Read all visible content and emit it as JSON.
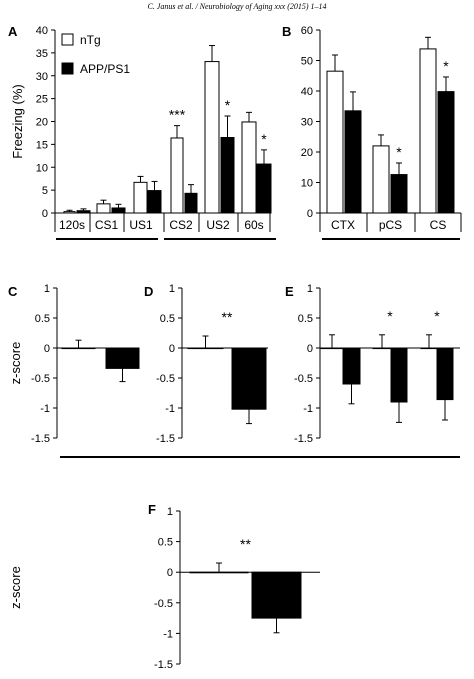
{
  "header": {
    "text": "C. Janus et al. / Neurobiology of Aging xxx (2015) 1–14"
  },
  "colors": {
    "nTg": "#ffffff",
    "APP/PS1": "#000000",
    "axis": "#000000"
  },
  "chart_data": [
    {
      "panel": "A",
      "type": "bar",
      "ylabel": "Freezing (%)",
      "ylim": [
        0,
        40
      ],
      "yticks": [
        "0",
        "5",
        "10",
        "15",
        "20",
        "25",
        "30",
        "35",
        "40"
      ],
      "categories": [
        "120s",
        "CS1",
        "US1",
        "CS2",
        "US2",
        "60s"
      ],
      "legend": [
        "nTg",
        "APP/PS1"
      ],
      "legend_position": "top-left",
      "series": [
        {
          "name": "nTg",
          "values": [
            0.3,
            2.0,
            6.7,
            16.4,
            33.1,
            19.9
          ],
          "errors": [
            0.3,
            0.8,
            1.3,
            2.7,
            3.5,
            2.1
          ]
        },
        {
          "name": "APP/PS1",
          "values": [
            0.5,
            1.1,
            4.9,
            4.3,
            16.5,
            10.7
          ],
          "errors": [
            0.4,
            0.8,
            2.0,
            1.9,
            4.7,
            3.1
          ]
        }
      ],
      "annotations": [
        "",
        "",
        "",
        "***",
        "*",
        "*"
      ]
    },
    {
      "panel": "B",
      "type": "bar",
      "ylabel": "",
      "ylim": [
        0,
        60
      ],
      "yticks": [
        "0",
        "10",
        "20",
        "30",
        "40",
        "50",
        "60"
      ],
      "categories": [
        "CTX",
        "pCS",
        "CS"
      ],
      "series": [
        {
          "name": "nTg",
          "values": [
            46.5,
            22.0,
            53.8
          ],
          "errors": [
            5.3,
            3.6,
            3.8
          ]
        },
        {
          "name": "APP/PS1",
          "values": [
            33.5,
            12.6,
            39.8
          ],
          "errors": [
            6.2,
            3.8,
            4.8
          ]
        }
      ],
      "annotations": [
        "",
        "*",
        "*"
      ]
    },
    {
      "panel": "C",
      "type": "bar",
      "ylabel": "z-score",
      "ylim": [
        -1.5,
        1
      ],
      "yticks": [
        "1",
        "0.5",
        "0",
        "-0.5",
        "-1",
        "-1.5"
      ],
      "series": [
        {
          "name": "nTg",
          "values": [
            0.0
          ],
          "errors": [
            0.13
          ]
        },
        {
          "name": "APP/PS1",
          "values": [
            -0.34
          ],
          "errors": [
            0.22
          ]
        }
      ],
      "annotations": [
        ""
      ]
    },
    {
      "panel": "D",
      "type": "bar",
      "ylabel": "",
      "ylim": [
        -1.5,
        1
      ],
      "yticks": [
        "1",
        "0.5",
        "0",
        "-0.5",
        "-1",
        "-1.5"
      ],
      "series": [
        {
          "name": "nTg",
          "values": [
            0.0
          ],
          "errors": [
            0.2
          ]
        },
        {
          "name": "APP/PS1",
          "values": [
            -1.02
          ],
          "errors": [
            0.24
          ]
        }
      ],
      "annotations": [
        "**"
      ]
    },
    {
      "panel": "E",
      "type": "bar",
      "ylabel": "",
      "ylim": [
        -1.5,
        1
      ],
      "yticks": [
        "1",
        "0.5",
        "0",
        "-0.5",
        "-1",
        "-1.5"
      ],
      "series": [
        {
          "name": "nTg",
          "values": [
            0.0,
            0.0,
            0.0
          ],
          "errors": [
            0.22,
            0.22,
            0.22
          ]
        },
        {
          "name": "APP/PS1",
          "values": [
            -0.6,
            -0.9,
            -0.86
          ],
          "errors": [
            0.33,
            0.34,
            0.34
          ]
        }
      ],
      "annotations": [
        "",
        "*",
        "*"
      ]
    },
    {
      "panel": "F",
      "type": "bar",
      "ylabel": "z-score",
      "ylim": [
        -1.5,
        1
      ],
      "yticks": [
        "1",
        "0.5",
        "0",
        "-0.5",
        "-1",
        "-1.5"
      ],
      "series": [
        {
          "name": "nTg",
          "values": [
            0.0
          ],
          "errors": [
            0.15
          ]
        },
        {
          "name": "APP/PS1",
          "values": [
            -0.75
          ],
          "errors": [
            0.24
          ]
        }
      ],
      "annotations": [
        "**"
      ]
    }
  ]
}
